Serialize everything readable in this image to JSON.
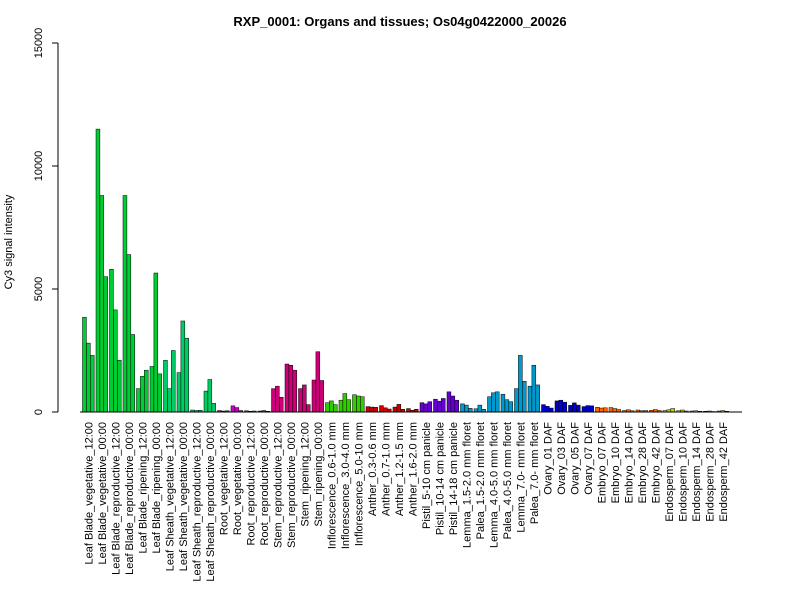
{
  "chart_data": {
    "type": "bar",
    "title": "RXP_0001: Organs and tissues; Os04g0422000_20026",
    "xlabel": "",
    "ylabel": "Cy3 signal intensity",
    "ylim": [
      0,
      15000
    ],
    "yticks": [
      "0",
      "5000",
      "10000",
      "15000"
    ],
    "ytick_values": [
      0,
      5000,
      10000,
      15000
    ],
    "grid": false,
    "legend": "none",
    "groups": [
      {
        "label": "Leaf Blade_vegetative_12:00",
        "color": "#00cc33",
        "values": [
          3850,
          2800,
          2300
        ]
      },
      {
        "label": "Leaf Blade_vegetative_00:00",
        "color": "#00cc33",
        "values": [
          11500,
          8800,
          5500
        ]
      },
      {
        "label": "Leaf Blade_reproductive_12:00",
        "color": "#00cc33",
        "values": [
          5800,
          4150,
          2100
        ]
      },
      {
        "label": "Leaf Blade_reproductive_00:00",
        "color": "#00cc33",
        "values": [
          8800,
          6400,
          3150
        ]
      },
      {
        "label": "Leaf Blade_ripening_12:00",
        "color": "#00cc33",
        "values": [
          950,
          1450,
          1700
        ]
      },
      {
        "label": "Leaf Blade_ripening_00:00",
        "color": "#00cc33",
        "values": [
          1850,
          5650,
          1550
        ]
      },
      {
        "label": "Leaf Sheath_vegetative_12:00",
        "color": "#00cc66",
        "values": [
          2100,
          950,
          2500
        ]
      },
      {
        "label": "Leaf Sheath_vegetative_00:00",
        "color": "#00cc66",
        "values": [
          1600,
          3700,
          3000
        ]
      },
      {
        "label": "Leaf Sheath_reproductive_12:00",
        "color": "#00cc66",
        "values": [
          80,
          60,
          70
        ]
      },
      {
        "label": "Leaf Sheath_reproductive_00:00",
        "color": "#00cc66",
        "values": [
          850,
          1320,
          350
        ]
      },
      {
        "label": "Root_vegetative_12:00",
        "color": "#cc00cc",
        "values": [
          60,
          40,
          50
        ]
      },
      {
        "label": "Root_vegetative_00:00",
        "color": "#cc00cc",
        "values": [
          250,
          180,
          60
        ]
      },
      {
        "label": "Root_reproductive_12:00",
        "color": "#cc00cc",
        "values": [
          50,
          30,
          40
        ]
      },
      {
        "label": "Root_reproductive_00:00",
        "color": "#cc00cc",
        "values": [
          40,
          60,
          30
        ]
      },
      {
        "label": "Stem_reproductive_12:00",
        "color": "#cc0077",
        "values": [
          950,
          1050,
          600
        ]
      },
      {
        "label": "Stem_reproductive_00:00",
        "color": "#cc0077",
        "values": [
          1950,
          1900,
          1700
        ]
      },
      {
        "label": "Stem_ripening_12:00",
        "color": "#cc0077",
        "values": [
          950,
          1100,
          300
        ]
      },
      {
        "label": "Stem_ripening_00:00",
        "color": "#cc0077",
        "values": [
          1300,
          2450,
          1280
        ]
      },
      {
        "label": "Inflorescence_0.6-1.0 mm",
        "color": "#33cc00",
        "values": [
          380,
          450,
          300
        ]
      },
      {
        "label": "Inflorescence_3.0-4.0 mm",
        "color": "#33cc00",
        "values": [
          480,
          750,
          500
        ]
      },
      {
        "label": "Inflorescence_5.0-10 mm",
        "color": "#33cc00",
        "values": [
          700,
          650,
          620
        ]
      },
      {
        "label": "Anther_0.3-0.6 mm",
        "color": "#cc0000",
        "values": [
          220,
          200,
          190
        ]
      },
      {
        "label": "Anther_0.7-1.0 mm",
        "color": "#cc0000",
        "values": [
          260,
          170,
          120
        ]
      },
      {
        "label": "Anther_1.2-1.5 mm",
        "color": "#cc0000",
        "values": [
          200,
          310,
          110
        ]
      },
      {
        "label": "Anther_1.6-2.0 mm",
        "color": "#cc0000",
        "values": [
          140,
          70,
          110
        ]
      },
      {
        "label": "Pistil_5-10 cm panicle",
        "color": "#6600cc",
        "values": [
          380,
          330,
          420
        ]
      },
      {
        "label": "Pistil_10-14 cm panicle",
        "color": "#6600cc",
        "values": [
          520,
          440,
          550
        ]
      },
      {
        "label": "Pistil_14-18 cm panicle",
        "color": "#6600cc",
        "values": [
          820,
          650,
          480
        ]
      },
      {
        "label": "Lemma_1.5-2.0 mm floret",
        "color": "#0099cc",
        "values": [
          330,
          280,
          150
        ]
      },
      {
        "label": "Palea_1.5-2.0 mm floret",
        "color": "#0099cc",
        "values": [
          130,
          280,
          110
        ]
      },
      {
        "label": "Lemma_4.0-5.0 mm floret",
        "color": "#0099cc",
        "values": [
          620,
          780,
          820
        ]
      },
      {
        "label": "Palea_4.0-5.0 mm floret",
        "color": "#0099cc",
        "values": [
          720,
          500,
          420
        ]
      },
      {
        "label": "Lemma_7.0- mm floret",
        "color": "#0099cc",
        "values": [
          950,
          2300,
          1250
        ]
      },
      {
        "label": "Palea_7.0- mm floret",
        "color": "#0099cc",
        "values": [
          1050,
          1900,
          1100
        ]
      },
      {
        "label": "Ovary_01 DAF",
        "color": "#0000cc",
        "values": [
          300,
          230,
          160
        ]
      },
      {
        "label": "Ovary_03 DAF",
        "color": "#0000cc",
        "values": [
          450,
          480,
          400
        ]
      },
      {
        "label": "Ovary_05 DAF",
        "color": "#0000cc",
        "values": [
          270,
          370,
          280
        ]
      },
      {
        "label": "Ovary_07 DAF",
        "color": "#0000cc",
        "values": [
          220,
          260,
          250
        ]
      },
      {
        "label": "Embryo_07 DAF",
        "color": "#ff6600",
        "values": [
          190,
          160,
          170
        ]
      },
      {
        "label": "Embryo_10 DAF",
        "color": "#ff6600",
        "values": [
          180,
          140,
          100
        ]
      },
      {
        "label": "Embryo_14 DAF",
        "color": "#ff6600",
        "values": [
          60,
          90,
          50
        ]
      },
      {
        "label": "Embryo_28 DAF",
        "color": "#ff6600",
        "values": [
          80,
          50,
          60
        ]
      },
      {
        "label": "Embryo_42 DAF",
        "color": "#ff6600",
        "values": [
          70,
          100,
          60
        ]
      },
      {
        "label": "Endosperm_07 DAF",
        "color": "#cccc00",
        "values": [
          60,
          90,
          140
        ]
      },
      {
        "label": "Endosperm_10 DAF",
        "color": "#cccc00",
        "values": [
          50,
          80,
          40
        ]
      },
      {
        "label": "Endosperm_14 DAF",
        "color": "#cccc00",
        "values": [
          40,
          50,
          30
        ]
      },
      {
        "label": "Endosperm_28 DAF",
        "color": "#cccc00",
        "values": [
          30,
          40,
          20
        ]
      },
      {
        "label": "Endosperm_42 DAF",
        "color": "#cccc00",
        "values": [
          40,
          60,
          30
        ]
      }
    ]
  }
}
